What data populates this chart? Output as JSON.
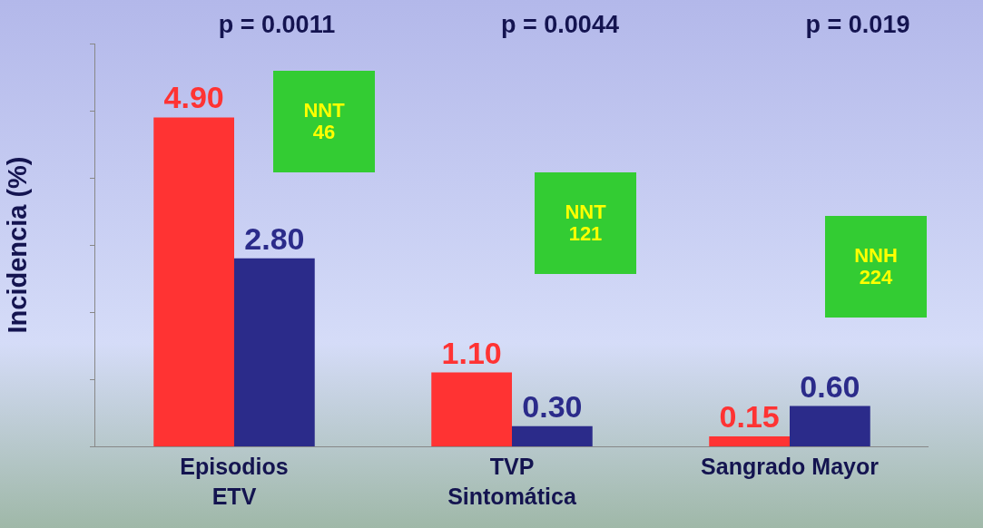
{
  "chart_data": {
    "type": "bar",
    "ylabel": "Incidencia (%)",
    "categories": [
      "Episodios\nETV",
      "TVP\nSintomática",
      "Sangrado Mayor"
    ],
    "series": [
      {
        "color": "#ff3333",
        "values": [
          4.9,
          1.1,
          0.15
        ],
        "value_labels": [
          "4.90",
          "1.10",
          "0.15"
        ]
      },
      {
        "color": "#2b2b8a",
        "values": [
          2.8,
          0.3,
          0.6
        ],
        "value_labels": [
          "2.80",
          "0.30",
          "0.60"
        ]
      }
    ],
    "ylim": [
      0,
      6
    ],
    "yticks": [
      {
        "value": 0,
        "label": null
      },
      {
        "value": 1,
        "label": null
      },
      {
        "value": 2,
        "label": null
      },
      {
        "value": 3,
        "label": null
      },
      {
        "value": 4,
        "label": null
      },
      {
        "value": 5,
        "label": null
      },
      {
        "value": 6,
        "label": null
      }
    ],
    "tick_labels": "x",
    "grid": false,
    "annotations": [
      "p = 0.0011",
      "p = 0.0044",
      "p = 0.019",
      "NNT\n46",
      "NNT\n121",
      "NNH\n224"
    ]
  }
}
